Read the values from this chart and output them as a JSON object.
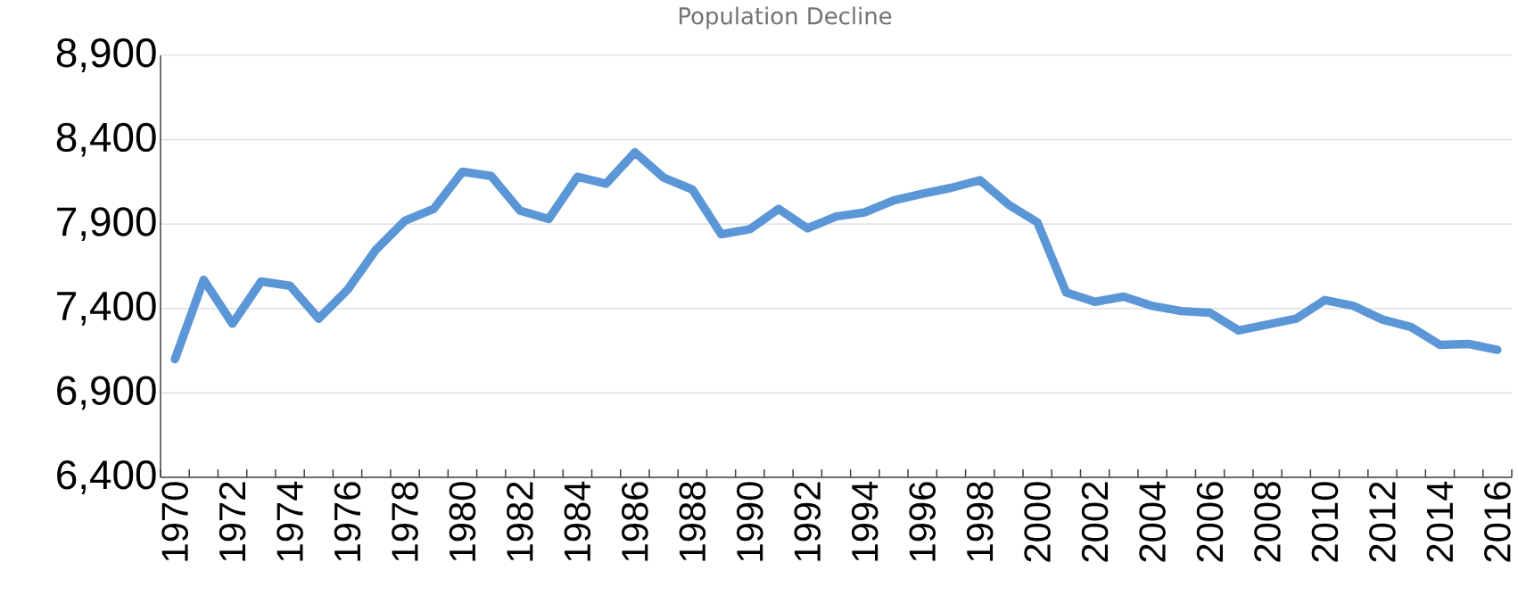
{
  "chart_data": {
    "type": "line",
    "title": "Population Decline",
    "categories": [
      "1970",
      null,
      "1972",
      null,
      "1974",
      null,
      "1976",
      null,
      "1978",
      null,
      "1980",
      null,
      "1982",
      null,
      "1984",
      null,
      "1986",
      null,
      "1988",
      null,
      "1990",
      null,
      "1992",
      null,
      "1994",
      null,
      "1996",
      null,
      "1998",
      null,
      "2000",
      null,
      "2002",
      null,
      "2004",
      null,
      "2006",
      null,
      "2008",
      null,
      "2010",
      null,
      "2012",
      null,
      "2014",
      null,
      "2016"
    ],
    "series": [
      {
        "color": "#5b96d6",
        "values": [
          7100,
          7570,
          7310,
          7560,
          7535,
          7340,
          7510,
          7750,
          7920,
          7990,
          8210,
          8185,
          7980,
          7930,
          8180,
          8140,
          8325,
          8175,
          8105,
          7840,
          7870,
          7990,
          7875,
          7945,
          7970,
          8040,
          8080,
          8115,
          8160,
          8015,
          7910,
          7495,
          7440,
          7470,
          7415,
          7385,
          7375,
          7270,
          7305,
          7340,
          7450,
          7415,
          7335,
          7290,
          7185,
          7190,
          7155
        ]
      }
    ],
    "ylim": [
      6400,
      8900
    ],
    "yticks": [
      {
        "value": 6400,
        "label": "6,400"
      },
      {
        "value": 6900,
        "label": "6,900"
      },
      {
        "value": 7400,
        "label": "7,400"
      },
      {
        "value": 7900,
        "label": "7,900"
      },
      {
        "value": 8400,
        "label": "8,400"
      },
      {
        "value": 8900,
        "label": "8,900"
      }
    ],
    "grid": "y",
    "marker": "none",
    "line_style": "solid"
  }
}
